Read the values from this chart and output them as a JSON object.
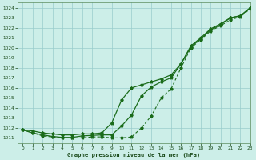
{
  "title": "Graphe pression niveau de la mer (hPa)",
  "bg_color": "#cceee8",
  "grid_color": "#99cccc",
  "line_color": "#1a6b1a",
  "xlim": [
    -0.5,
    23
  ],
  "ylim": [
    1010.5,
    1024.5
  ],
  "yticks": [
    1011,
    1012,
    1013,
    1014,
    1015,
    1016,
    1017,
    1018,
    1019,
    1020,
    1021,
    1022,
    1023,
    1024
  ],
  "xticks": [
    0,
    1,
    2,
    3,
    4,
    5,
    6,
    7,
    8,
    9,
    10,
    11,
    12,
    13,
    14,
    15,
    16,
    17,
    18,
    19,
    20,
    21,
    22,
    23
  ],
  "line1_x": [
    0,
    1,
    2,
    3,
    4,
    5,
    6,
    7,
    8,
    9,
    10,
    11,
    12,
    13,
    14,
    15,
    16,
    17,
    18,
    19,
    20,
    21,
    22,
    23
  ],
  "line1_y": [
    1011.8,
    1011.7,
    1011.5,
    1011.4,
    1011.3,
    1011.3,
    1011.4,
    1011.4,
    1011.5,
    1012.5,
    1014.8,
    1016.0,
    1016.3,
    1016.6,
    1016.9,
    1017.3,
    1018.4,
    1020.2,
    1021.0,
    1021.9,
    1022.4,
    1023.0,
    1023.2,
    1024.0
  ],
  "line2_x": [
    0,
    1,
    2,
    3,
    4,
    5,
    6,
    7,
    8,
    9,
    10,
    11,
    12,
    13,
    14,
    15,
    16,
    17,
    18,
    19,
    20,
    21,
    22,
    23
  ],
  "line2_y": [
    1011.8,
    1011.5,
    1011.3,
    1011.15,
    1011.05,
    1011.05,
    1011.2,
    1011.25,
    1011.3,
    1011.3,
    1012.2,
    1013.3,
    1015.2,
    1016.1,
    1016.6,
    1017.0,
    1018.4,
    1020.1,
    1020.9,
    1021.8,
    1022.3,
    1023.0,
    1023.2,
    1024.0
  ],
  "line3_x": [
    0,
    1,
    2,
    3,
    4,
    5,
    6,
    7,
    8,
    9,
    10,
    11,
    12,
    13,
    14,
    15,
    16,
    17,
    18,
    19,
    20,
    21,
    22,
    23
  ],
  "line3_y": [
    1011.8,
    1011.5,
    1011.2,
    1011.1,
    1011.0,
    1011.0,
    1011.0,
    1011.1,
    1011.1,
    1011.0,
    1011.0,
    1011.1,
    1012.0,
    1013.2,
    1015.0,
    1015.9,
    1018.0,
    1020.0,
    1020.8,
    1021.7,
    1022.2,
    1022.8,
    1023.1,
    1023.9
  ]
}
